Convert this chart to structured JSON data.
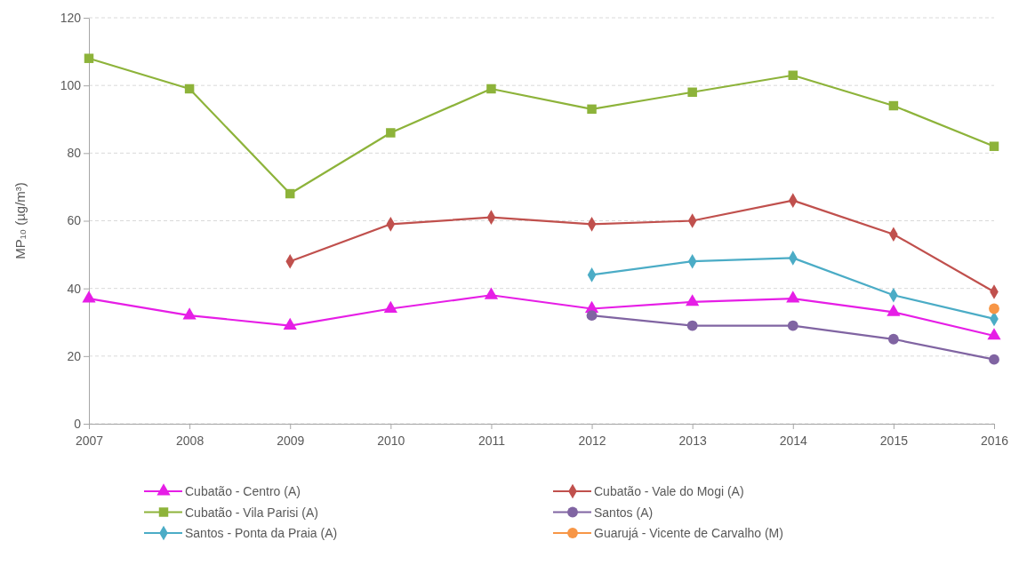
{
  "chart_data": {
    "type": "line",
    "ylabel": "MP₁₀ (µg/m³)",
    "x": [
      2007,
      2008,
      2009,
      2010,
      2011,
      2012,
      2013,
      2014,
      2015,
      2016
    ],
    "xlim": [
      2007,
      2016
    ],
    "xticks": [
      2007,
      2008,
      2009,
      2010,
      2011,
      2012,
      2013,
      2014,
      2015,
      2016
    ],
    "ylim": [
      0,
      120
    ],
    "yticks": [
      0,
      20,
      40,
      60,
      80,
      100,
      120
    ],
    "grid": "y",
    "legend": "bottom",
    "line_style": "solid",
    "series": [
      {
        "name": "Cubatão - Centro (A)",
        "color": "#e61ee6",
        "marker": "triangle",
        "values": [
          37,
          32,
          29,
          34,
          38,
          34,
          36,
          37,
          33,
          26
        ]
      },
      {
        "name": "Cubatão - Vale do Mogi (A)",
        "color": "#c0504d",
        "marker": "diamond",
        "values": [
          null,
          null,
          48,
          59,
          61,
          59,
          60,
          66,
          56,
          39
        ]
      },
      {
        "name": "Cubatão - Vila Parisi (A)",
        "color": "#8db33a",
        "marker": "square",
        "values": [
          108,
          99,
          68,
          86,
          99,
          93,
          98,
          103,
          94,
          82
        ]
      },
      {
        "name": "Santos (A)",
        "color": "#8064a2",
        "marker": "circle",
        "values": [
          null,
          null,
          null,
          null,
          null,
          32,
          29,
          29,
          25,
          19
        ]
      },
      {
        "name": "Santos - Ponta da Praia (A)",
        "color": "#4bacc6",
        "marker": "diamond",
        "values": [
          null,
          null,
          null,
          null,
          null,
          44,
          48,
          49,
          38,
          31
        ]
      },
      {
        "name": "Guarujá - Vicente de Carvalho (M)",
        "color": "#f79646",
        "marker": "circle",
        "values": [
          null,
          null,
          null,
          null,
          null,
          null,
          null,
          null,
          null,
          34
        ]
      }
    ]
  }
}
